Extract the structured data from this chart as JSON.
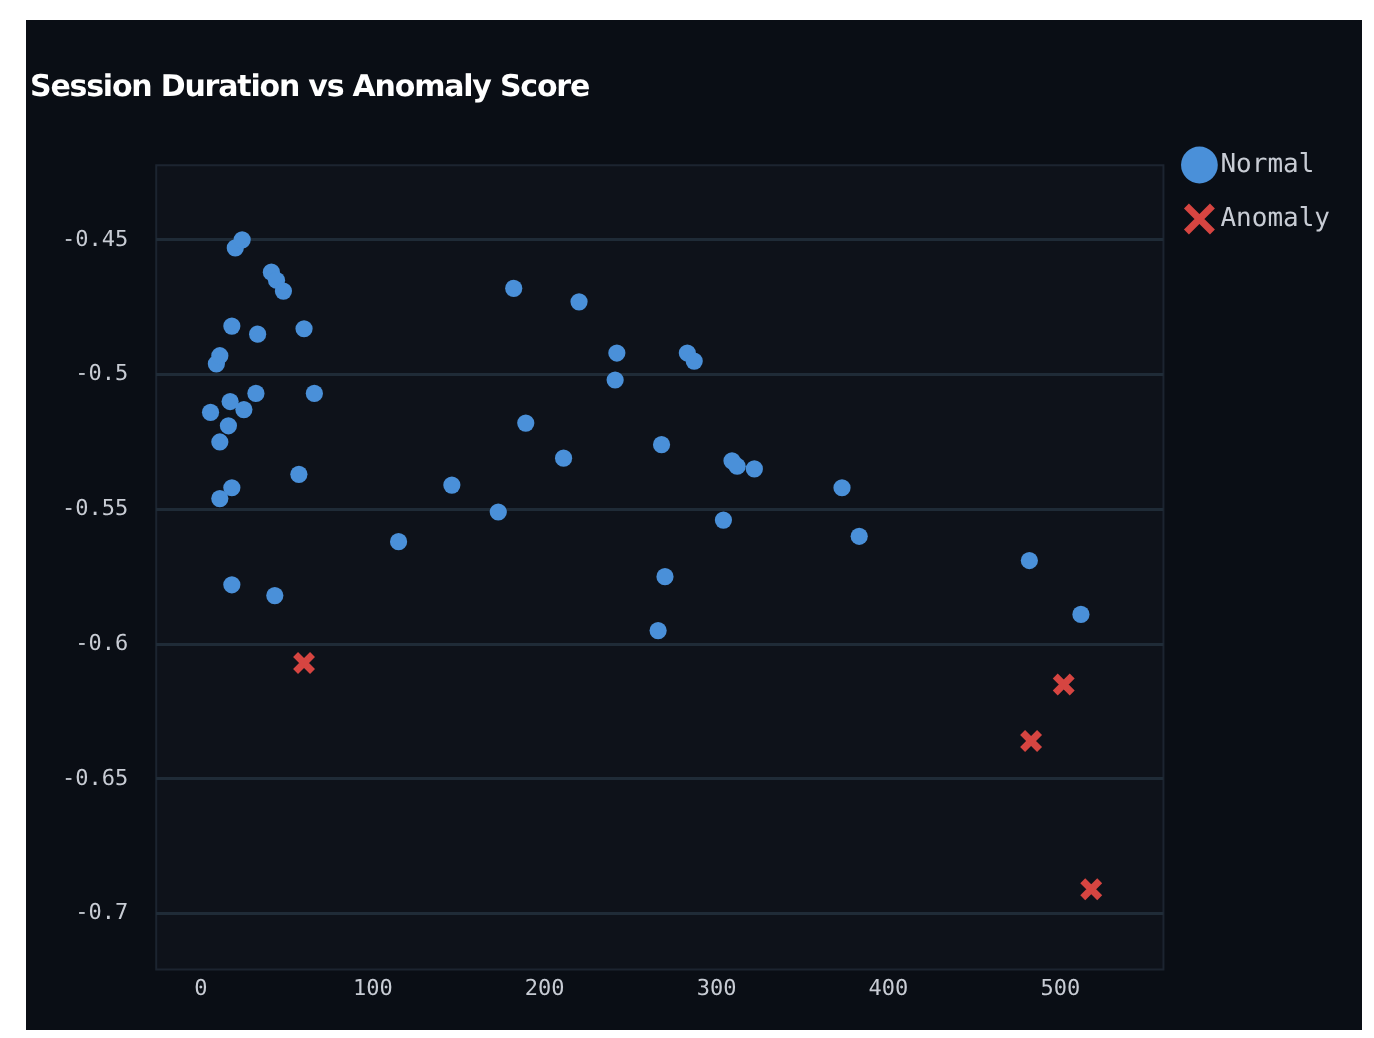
{
  "chart_data": {
    "type": "scatter",
    "title": "Session Duration vs Anomaly Score",
    "xlim": [
      -26,
      560
    ],
    "xticks": [
      0,
      100,
      200,
      300,
      400,
      500
    ],
    "ylim": [
      -0.7208,
      -0.4223
    ],
    "yticks": [
      -0.7,
      -0.65,
      -0.6,
      -0.55,
      -0.5,
      -0.45
    ],
    "grid": "y",
    "legend": "right",
    "series": [
      {
        "name": "Normal",
        "color": "#4a90d9",
        "marker": "circle",
        "x": [
          5.6,
          9,
          11,
          11,
          11,
          16,
          17,
          18,
          18,
          18,
          20,
          24,
          25,
          32,
          33,
          41,
          44,
          43,
          48,
          57,
          60,
          66,
          115,
          146,
          173,
          182,
          189,
          211,
          220,
          241,
          242,
          268,
          270,
          266,
          283,
          287,
          309,
          312,
          322,
          304,
          373,
          383,
          482,
          512
        ],
        "values": [
          -0.514,
          -0.496,
          -0.493,
          -0.525,
          -0.546,
          -0.519,
          -0.51,
          -0.542,
          -0.578,
          -0.482,
          -0.453,
          -0.45,
          -0.513,
          -0.507,
          -0.485,
          -0.462,
          -0.465,
          -0.582,
          -0.469,
          -0.537,
          -0.483,
          -0.507,
          -0.562,
          -0.541,
          -0.551,
          -0.468,
          -0.518,
          -0.531,
          -0.473,
          -0.502,
          -0.492,
          -0.526,
          -0.575,
          -0.595,
          -0.492,
          -0.495,
          -0.532,
          -0.534,
          -0.535,
          -0.554,
          -0.542,
          -0.56,
          -0.569,
          -0.589
        ]
      },
      {
        "name": "Anomaly",
        "color": "#d64541",
        "marker": "cross",
        "x": [
          60,
          483,
          502,
          518
        ],
        "values": [
          -0.607,
          -0.636,
          -0.615,
          -0.691
        ]
      }
    ]
  }
}
